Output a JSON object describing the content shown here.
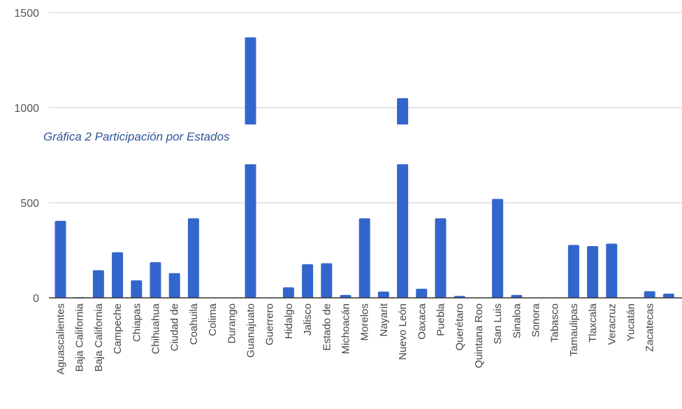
{
  "caption": "Gráfica 2 Participación por Estados",
  "colors": {
    "bar": "#3366cc",
    "grid": "#cccccc",
    "axis": "#333333",
    "caption": "#2e5597"
  },
  "chart_data": {
    "type": "bar",
    "title": "",
    "xlabel": "",
    "ylabel": "",
    "ylim": [
      0,
      1500
    ],
    "yticks": [
      0,
      500,
      1000,
      1500
    ],
    "grid": true,
    "categories": [
      "Aguascalientes",
      "Baja California",
      "Baja California",
      "Campeche",
      "Chiapas",
      "Chihuahua",
      "Ciudad de",
      "Coahuila",
      "Colima",
      "Durango",
      "Guanajuato",
      "Guerrero",
      "Hidalgo",
      "Jalisco",
      "Estado de",
      "Michoacán",
      "Morelos",
      "Nayarit",
      "Nuevo León",
      "Oaxaca",
      "Puebla",
      "Querétaro",
      "Quintana Roo",
      "San Luis",
      "Sinaloa",
      "Sonora",
      "Tabasco",
      "Tamaulipas",
      "Tlaxcala",
      "Veracruz",
      "Yucatán",
      "Zacatecas",
      ""
    ],
    "values": [
      405,
      3,
      145,
      240,
      92,
      188,
      130,
      418,
      0,
      0,
      1370,
      0,
      55,
      177,
      182,
      15,
      418,
      33,
      1050,
      48,
      418,
      10,
      0,
      520,
      15,
      0,
      0,
      278,
      272,
      285,
      0,
      35,
      22
    ]
  }
}
